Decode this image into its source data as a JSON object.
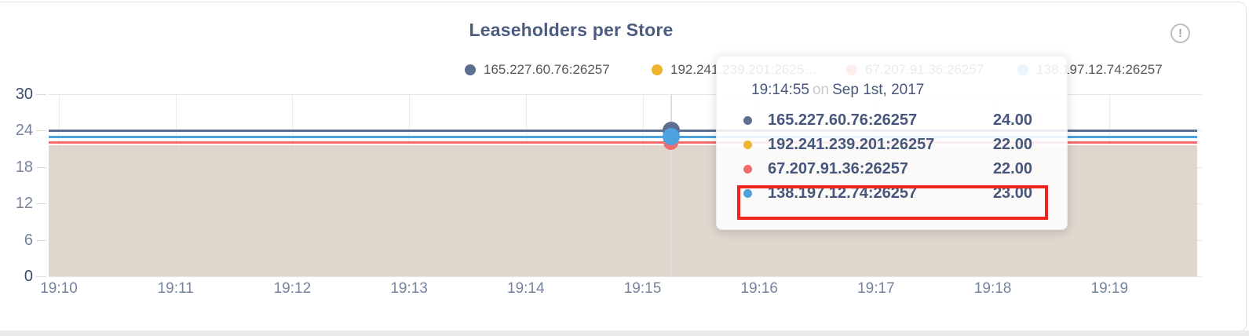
{
  "page": {
    "background": "#ffffff",
    "bottom_strip_color": "#eaeaea",
    "card_border": "#e2e2e2"
  },
  "header": {
    "title": "Leaseholders per Store",
    "info_icon_glyph": "!"
  },
  "legend": {
    "items": [
      {
        "label": "165.227.60.76:26257",
        "color": "#5c6e92"
      },
      {
        "label": "192.241.239.201:2625…",
        "color": "#edb62f"
      },
      {
        "label": "67.207.91.36:26257",
        "color": "#f26c6c"
      },
      {
        "label": "138.197.12.74:26257",
        "color": "#4da3de"
      }
    ]
  },
  "chart_data": {
    "type": "area",
    "title": "Leaseholders per Store",
    "x": [
      "19:10",
      "19:11",
      "19:12",
      "19:13",
      "19:14",
      "19:15",
      "19:16",
      "19:17",
      "19:18",
      "19:19"
    ],
    "xlabel": "",
    "ylabel": "",
    "ylim": [
      0,
      30
    ],
    "yticks": [
      0,
      6,
      12,
      18,
      24,
      30
    ],
    "grid": true,
    "legend_position": "top",
    "area_fill_color": "#ddd5cc",
    "series": [
      {
        "name": "165.227.60.76:26257",
        "color": "#5c6e92",
        "values": [
          24,
          24,
          24,
          24,
          24,
          24,
          24,
          24,
          24,
          24
        ]
      },
      {
        "name": "192.241.239.201:26257",
        "color": "#edb62f",
        "values": [
          22,
          22,
          22,
          22,
          22,
          22,
          22,
          22,
          22,
          22
        ]
      },
      {
        "name": "67.207.91.36:26257",
        "color": "#f26c6c",
        "values": [
          22,
          22,
          22,
          22,
          22,
          22,
          22,
          22,
          22,
          22
        ]
      },
      {
        "name": "138.197.12.74:26257",
        "color": "#4da3de",
        "values": [
          23,
          23,
          23,
          23,
          23,
          23,
          23,
          23,
          23,
          23
        ]
      }
    ],
    "hover": {
      "time": "19:14:55",
      "x_fraction": 0.542,
      "values": [
        24,
        22,
        22,
        23
      ]
    }
  },
  "tooltip": {
    "time": "19:14:55",
    "conjunction": "on",
    "date": "Sep 1st, 2017",
    "rows": [
      {
        "name": "165.227.60.76:26257",
        "value": "24.00",
        "color": "#5c6e92"
      },
      {
        "name": "192.241.239.201:26257",
        "value": "22.00",
        "color": "#edb62f"
      },
      {
        "name": "67.207.91.36:26257",
        "value": "22.00",
        "color": "#f26c6c"
      },
      {
        "name": "138.197.12.74:26257",
        "value": "23.00",
        "color": "#4da3de"
      }
    ],
    "highlighted_row": 3,
    "highlight_color": "#ee231d"
  }
}
